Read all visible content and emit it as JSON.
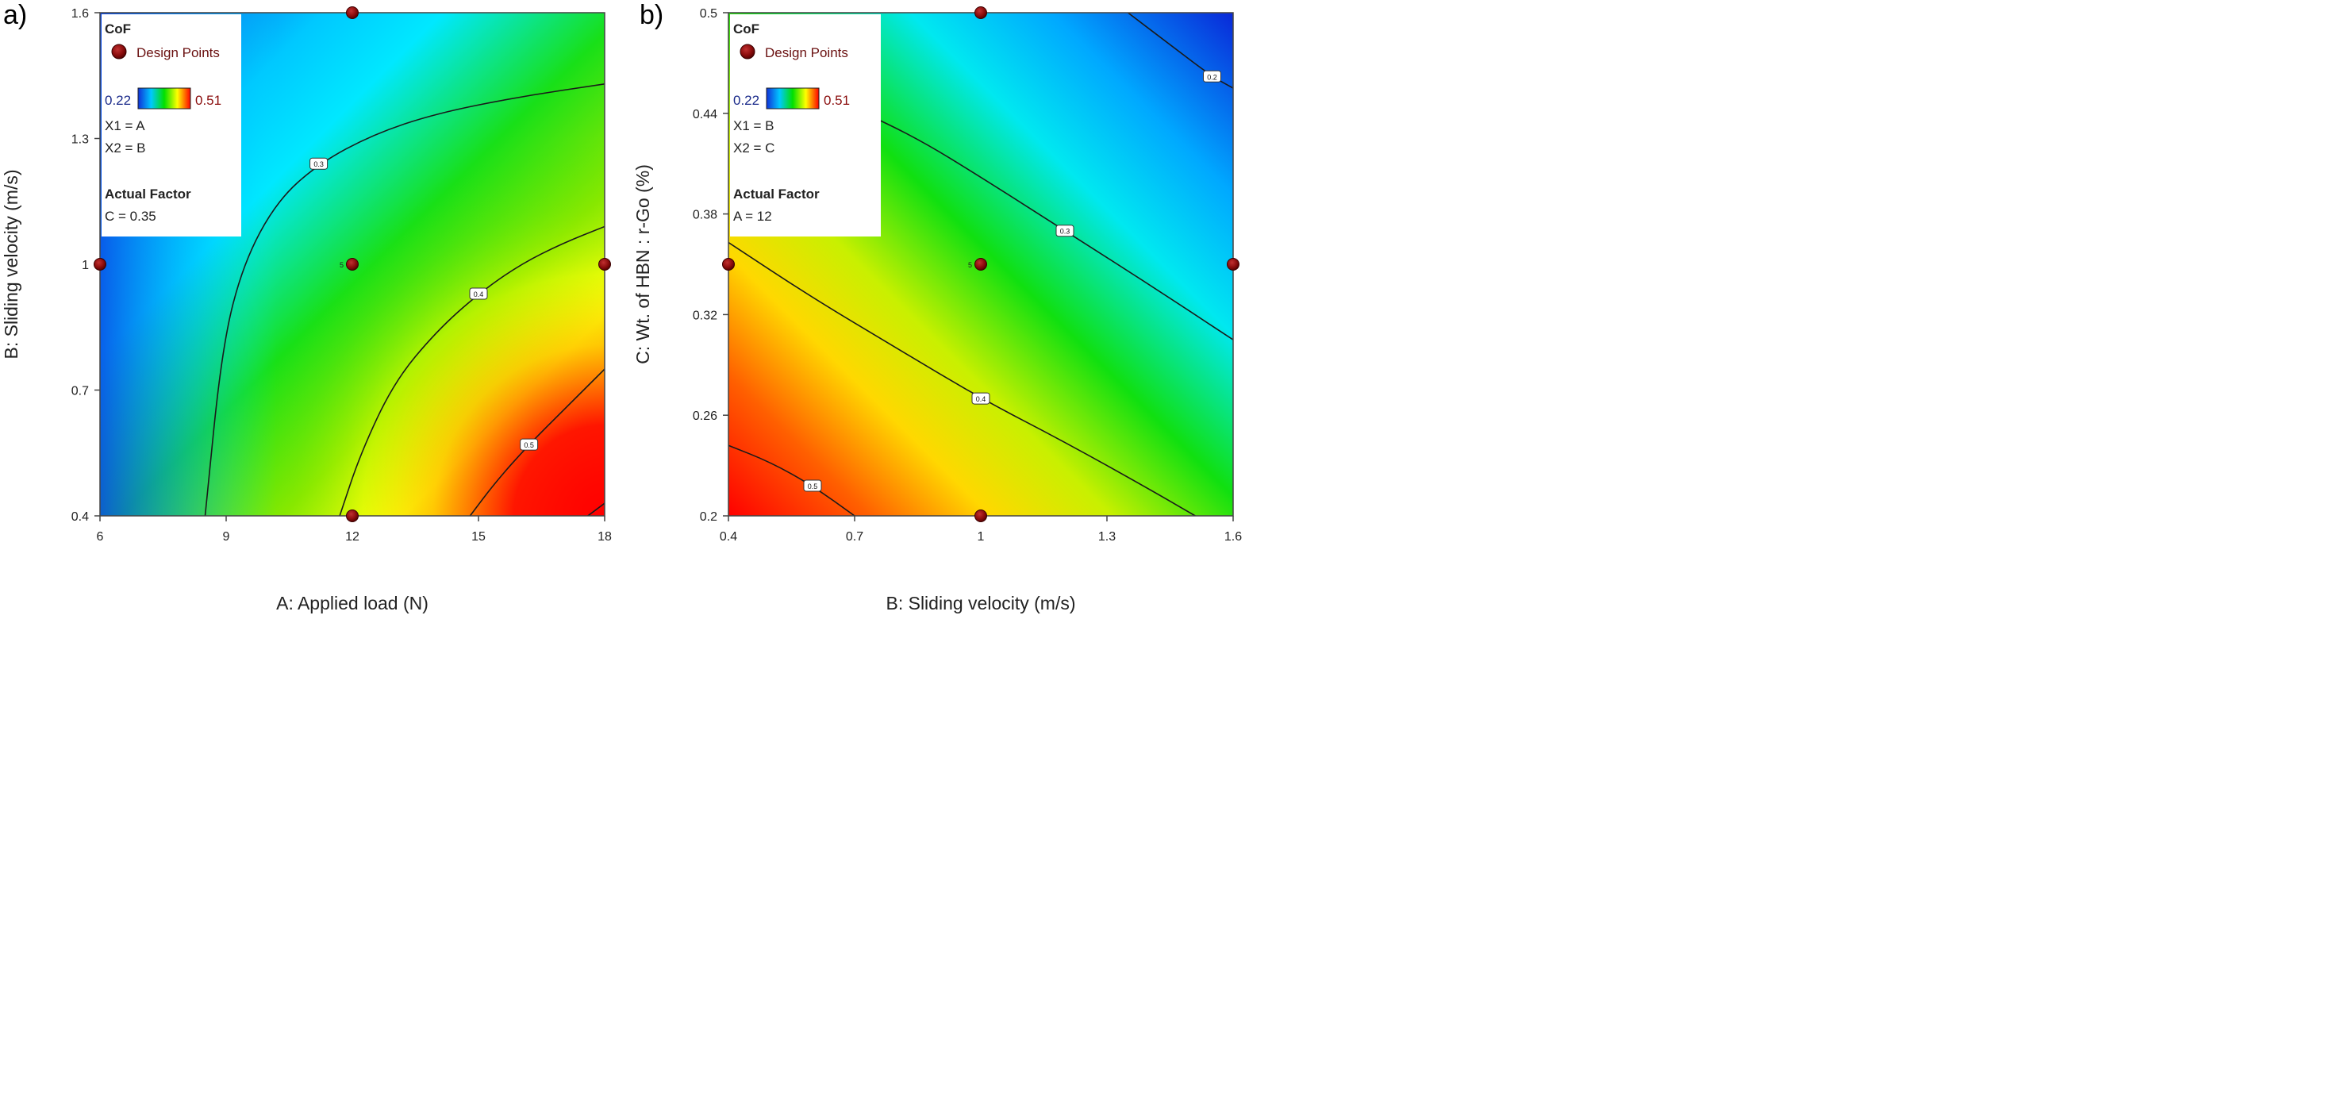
{
  "figure": {
    "panel_labels": [
      "a)",
      "b)"
    ]
  },
  "chart_data": [
    {
      "type": "heatmap",
      "subtype": "contour",
      "panel": "a)",
      "xlabel": "A: Applied load (N)",
      "ylabel": "B: Sliding velocity (m/s)",
      "xlim": [
        6,
        18
      ],
      "ylim": [
        0.4,
        1.6
      ],
      "xticks": [
        "6",
        "9",
        "12",
        "15",
        "18"
      ],
      "yticks": [
        "0.4",
        "0.7",
        "1",
        "1.3",
        "1.6"
      ],
      "colorscale": {
        "min_label": "0.22",
        "max_label": "0.51",
        "min": 0.22,
        "max": 0.51,
        "stops": [
          "#1040e0",
          "#00e8ff",
          "#00e000",
          "#ffff00",
          "#ff0000"
        ]
      },
      "legend": {
        "response": "CoF",
        "points_label": "Design Points",
        "min_label": "0.22",
        "max_label": "0.51",
        "x1": "X1 = A",
        "x2": "X2 = B",
        "actual_factor_title": "Actual Factor",
        "actual_factor": "C = 0.35",
        "placement": "top-left"
      },
      "contour_levels": [
        {
          "level": 0.3,
          "label": "0.3",
          "points": [
            [
              8.5,
              0.4
            ],
            [
              8.9,
              0.8
            ],
            [
              9.4,
              1.0
            ],
            [
              10.2,
              1.15
            ],
            [
              11.2,
              1.24
            ],
            [
              12.5,
              1.31
            ],
            [
              14,
              1.36
            ],
            [
              16,
              1.4
            ],
            [
              18,
              1.43
            ]
          ]
        },
        {
          "level": 0.4,
          "label": "0.4",
          "points": [
            [
              11.7,
              0.4
            ],
            [
              12.2,
              0.55
            ],
            [
              13,
              0.72
            ],
            [
              14,
              0.84
            ],
            [
              15,
              0.93
            ],
            [
              16,
              1.0
            ],
            [
              17,
              1.05
            ],
            [
              18,
              1.09
            ]
          ]
        },
        {
          "level": 0.5,
          "label": "0.5",
          "points": [
            [
              14.8,
              0.4
            ],
            [
              15.4,
              0.48
            ],
            [
              16.2,
              0.57
            ],
            [
              17,
              0.65
            ],
            [
              18,
              0.75
            ]
          ]
        },
        {
          "level": 0.5,
          "label": "",
          "points": [
            [
              17.6,
              0.4
            ],
            [
              18,
              0.43
            ]
          ]
        }
      ],
      "design_points": [
        [
          12,
          1.6
        ],
        [
          6,
          1
        ],
        [
          12,
          1
        ],
        [
          18,
          1
        ],
        [
          12,
          0.4
        ]
      ],
      "point_annotation": {
        "x": 12,
        "y": 1,
        "text": "5"
      }
    },
    {
      "type": "heatmap",
      "subtype": "contour",
      "panel": "b)",
      "xlabel": "B: Sliding velocity (m/s)",
      "ylabel": "C: Wt. of HBN : r-Go (%)",
      "xlim": [
        0.4,
        1.6
      ],
      "ylim": [
        0.2,
        0.5
      ],
      "xticks": [
        "0.4",
        "0.7",
        "1",
        "1.3",
        "1.6"
      ],
      "yticks": [
        "0.2",
        "0.26",
        "0.32",
        "0.38",
        "0.44",
        "0.5"
      ],
      "colorscale": {
        "min_label": "0.22",
        "max_label": "0.51",
        "min": 0.22,
        "max": 0.51,
        "stops": [
          "#1040e0",
          "#00e8ff",
          "#00e000",
          "#ffff00",
          "#ff0000"
        ]
      },
      "legend": {
        "response": "CoF",
        "points_label": "Design Points",
        "min_label": "0.22",
        "max_label": "0.51",
        "x1": "X1 = B",
        "x2": "X2 = C",
        "actual_factor_title": "Actual Factor",
        "actual_factor": "A = 12",
        "placement": "top-left"
      },
      "contour_levels": [
        {
          "level": 0.2,
          "label": "0.2",
          "points": [
            [
              1.35,
              0.5
            ],
            [
              1.46,
              0.479
            ],
            [
              1.55,
              0.462
            ],
            [
              1.6,
              0.455
            ]
          ]
        },
        {
          "level": 0.3,
          "label": "0.3",
          "points": [
            [
              0.7,
              0.443
            ],
            [
              0.85,
              0.425
            ],
            [
              1.0,
              0.402
            ],
            [
              1.2,
              0.37
            ],
            [
              1.4,
              0.338
            ],
            [
              1.6,
              0.305
            ]
          ]
        },
        {
          "level": 0.4,
          "label": "0.4",
          "points": [
            [
              0.4,
              0.363
            ],
            [
              0.6,
              0.33
            ],
            [
              0.8,
              0.3
            ],
            [
              1.0,
              0.27
            ],
            [
              1.2,
              0.244
            ],
            [
              1.4,
              0.216
            ],
            [
              1.51,
              0.2
            ]
          ]
        },
        {
          "level": 0.5,
          "label": "0.5",
          "points": [
            [
              0.4,
              0.242
            ],
            [
              0.5,
              0.232
            ],
            [
              0.6,
              0.218
            ],
            [
              0.7,
              0.2
            ]
          ]
        }
      ],
      "design_points": [
        [
          1,
          0.5
        ],
        [
          0.4,
          0.35
        ],
        [
          1,
          0.35
        ],
        [
          1.6,
          0.35
        ],
        [
          1,
          0.2
        ]
      ],
      "point_annotation": {
        "x": 1,
        "y": 0.35,
        "text": "5"
      }
    }
  ]
}
